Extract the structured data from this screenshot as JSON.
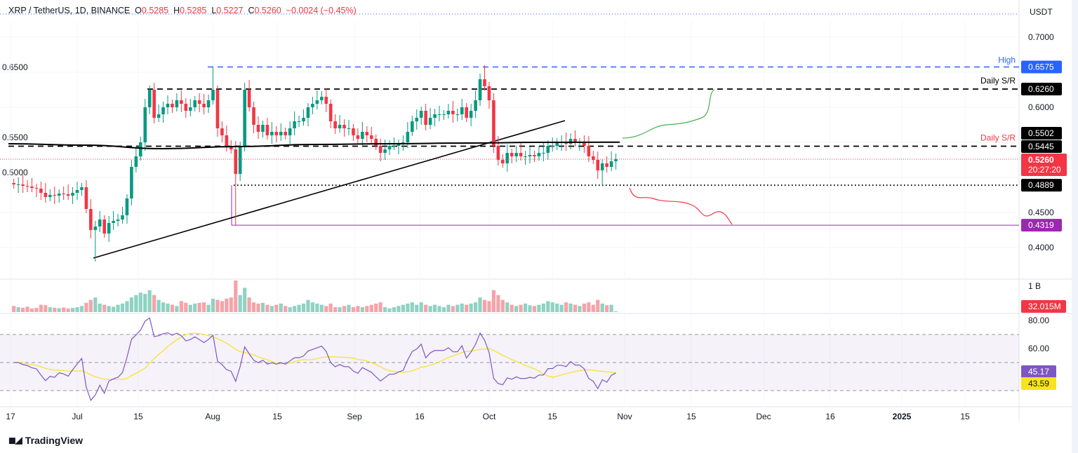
{
  "header": {
    "symbol": "XRP / TetherUS, 1D, BINANCE",
    "o_label": "O",
    "o": "0.5285",
    "h_label": "H",
    "h": "0.5285",
    "l_label": "L",
    "l": "0.5227",
    "c_label": "C",
    "c": "0.5260",
    "change": "−0.0024 (−0.45%)"
  },
  "currency": "USDT",
  "branding": "TradingView",
  "colors": {
    "up": "#089981",
    "down": "#f23645",
    "vol_up": "#8fd2c4",
    "vol_down": "#f5a3a9",
    "rsi": "#7e57c2",
    "rsi_ma": "#f7e31e",
    "high_line": "#2962ff",
    "support_purple": "#9c27b0",
    "projection_up": "#4caf50",
    "projection_down": "#f23645"
  },
  "chart_data": {
    "type": "candlestick",
    "first_date": "2024-06-17",
    "closes": [
      0.49,
      0.49,
      0.488,
      0.487,
      0.485,
      0.484,
      0.478,
      0.472,
      0.475,
      0.474,
      0.477,
      0.476,
      0.474,
      0.478,
      0.482,
      0.486,
      0.455,
      0.425,
      0.43,
      0.44,
      0.42,
      0.435,
      0.438,
      0.44,
      0.446,
      0.47,
      0.515,
      0.53,
      0.55,
      0.6,
      0.625,
      0.585,
      0.59,
      0.6,
      0.605,
      0.6,
      0.61,
      0.605,
      0.595,
      0.6,
      0.61,
      0.605,
      0.6,
      0.61,
      0.625,
      0.57,
      0.56,
      0.545,
      0.54,
      0.505,
      0.545,
      0.625,
      0.6,
      0.575,
      0.565,
      0.575,
      0.56,
      0.565,
      0.56,
      0.565,
      0.56,
      0.57,
      0.58,
      0.58,
      0.585,
      0.6,
      0.605,
      0.61,
      0.615,
      0.605,
      0.58,
      0.57,
      0.575,
      0.57,
      0.57,
      0.56,
      0.555,
      0.565,
      0.56,
      0.555,
      0.545,
      0.535,
      0.54,
      0.545,
      0.545,
      0.548,
      0.55,
      0.565,
      0.58,
      0.585,
      0.595,
      0.575,
      0.585,
      0.59,
      0.59,
      0.59,
      0.595,
      0.59,
      0.59,
      0.6,
      0.585,
      0.595,
      0.61,
      0.64,
      0.63,
      0.61,
      0.545,
      0.525,
      0.52,
      0.535,
      0.53,
      0.535,
      0.53,
      0.53,
      0.532,
      0.53,
      0.535,
      0.535,
      0.545,
      0.545,
      0.55,
      0.55,
      0.548,
      0.555,
      0.55,
      0.55,
      0.545,
      0.53,
      0.525,
      0.51,
      0.52,
      0.515,
      0.523,
      0.526
    ],
    "notable_wicks": [
      {
        "date": "2024-07-05",
        "low": 0.38
      },
      {
        "date": "2024-07-31",
        "high": 0.6575
      },
      {
        "date": "2024-08-05",
        "low": 0.4319
      },
      {
        "date": "2024-09-29",
        "high": 0.66
      },
      {
        "date": "2024-10-25",
        "low": 0.4889
      }
    ],
    "volume_millions": [
      250,
      200,
      180,
      220,
      150,
      170,
      300,
      280,
      200,
      180,
      160,
      190,
      150,
      170,
      200,
      250,
      380,
      500,
      600,
      350,
      300,
      250,
      220,
      300,
      350,
      450,
      600,
      700,
      800,
      750,
      900,
      700,
      500,
      400,
      350,
      300,
      250,
      450,
      380,
      300,
      350,
      380,
      400,
      300,
      550,
      500,
      450,
      550,
      600,
      1300,
      700,
      1000,
      600,
      400,
      350,
      380,
      300,
      250,
      300,
      350,
      250,
      200,
      250,
      300,
      350,
      500,
      400,
      350,
      300,
      250,
      350,
      200,
      200,
      250,
      300,
      200,
      250,
      200,
      250,
      300,
      350,
      400,
      200,
      150,
      200,
      250,
      300,
      350,
      400,
      300,
      400,
      300,
      250,
      300,
      250,
      200,
      300,
      250,
      300,
      350,
      300,
      350,
      400,
      600,
      500,
      450,
      900,
      700,
      500,
      400,
      300,
      250,
      300,
      350,
      280,
      250,
      300,
      350,
      450,
      400,
      350,
      300,
      400,
      350,
      300,
      250,
      350,
      400,
      300,
      500,
      350,
      280,
      300,
      32.015
    ],
    "ma200": [
      0.548,
      0.546,
      0.541,
      0.544,
      0.547,
      0.548,
      0.549,
      0.55,
      0.5502
    ],
    "price_axis": {
      "ticks": [
        "0.7000",
        "0.6500",
        "0.6000",
        "0.5500",
        "0.5000",
        "0.4500",
        "0.4000"
      ],
      "range": [
        0.37,
        0.76
      ]
    },
    "volume_axis": {
      "ticks": [
        "1 B"
      ]
    },
    "rsi_axis": {
      "ticks": [
        "80.00",
        "60.00"
      ],
      "bands": [
        70,
        50,
        30
      ]
    },
    "x_ticks": [
      "17",
      "Jul",
      "15",
      "Aug",
      "15",
      "Sep",
      "16",
      "Oct",
      "15",
      "Nov",
      "15",
      "Dec",
      "16",
      "2025",
      "15"
    ],
    "levels": [
      {
        "label": "High",
        "value": "0.6575"
      },
      {
        "label": "Daily S/R",
        "value": "0.6260"
      },
      {
        "label": "Daily S/R",
        "value": "0.5445"
      },
      {
        "label": "",
        "value": "0.4889"
      },
      {
        "label": "",
        "value": "0.4319"
      }
    ],
    "last_price": "0.5260",
    "countdown": "20:27:20",
    "ma_value": "0.5502",
    "volume_value": "32.015M",
    "rsi_value": "45.17",
    "rsi_ma_value": "43.59"
  }
}
